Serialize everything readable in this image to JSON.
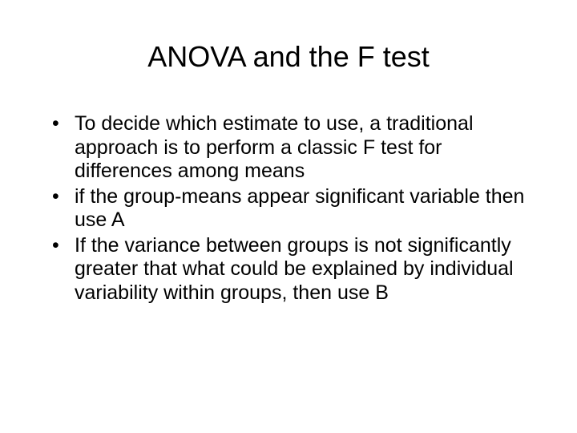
{
  "slide": {
    "title": "ANOVA and the F test",
    "title_fontsize": 36,
    "title_color": "#000000",
    "body_fontsize": 25,
    "body_color": "#000000",
    "line_height": 1.18,
    "background_color": "#ffffff",
    "bullets": [
      "To decide which estimate to use, a traditional approach is to perform a classic F test for differences among means",
      "if the group-means appear significant variable then use A",
      "If the variance between groups is not significantly greater that what could be explained by individual variability within groups, then use B"
    ]
  }
}
